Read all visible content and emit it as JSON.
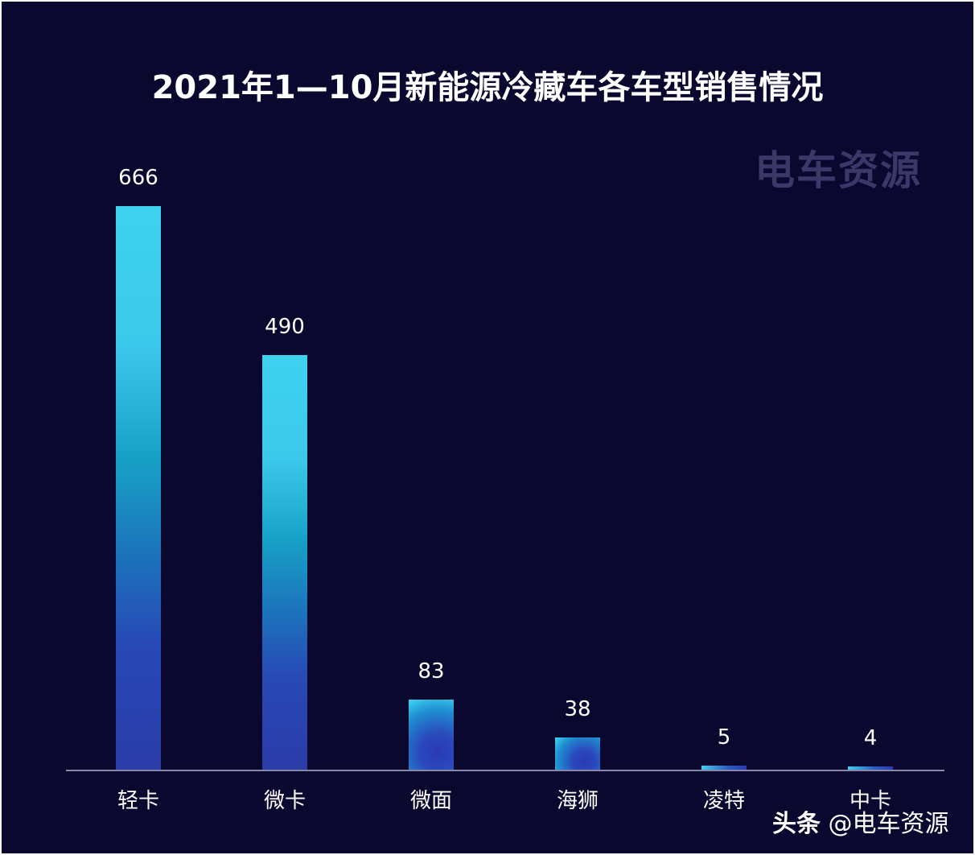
{
  "chart_data": {
    "type": "bar",
    "title": "2021年1—10月新能源冷藏车各车型销售情况",
    "categories": [
      "轻卡",
      "微卡",
      "微面",
      "海狮",
      "凌特",
      "中卡"
    ],
    "values": [
      666,
      490,
      83,
      38,
      5,
      4
    ],
    "value_labels": [
      "666",
      "490",
      "83",
      "38",
      "5",
      "4"
    ],
    "xlabel": "",
    "ylabel": "",
    "ylim": [
      0,
      700
    ],
    "grid": false,
    "legend": null,
    "colors": {
      "background": "#0b0830",
      "bar_top": "#3fd2ef",
      "bar_bottom": "#2a3ca8",
      "axis": "#8a88a8",
      "text": "#ffffff"
    }
  },
  "watermark": "电车资源",
  "source_credit": {
    "platform": "头条",
    "handle": "@电车资源"
  }
}
